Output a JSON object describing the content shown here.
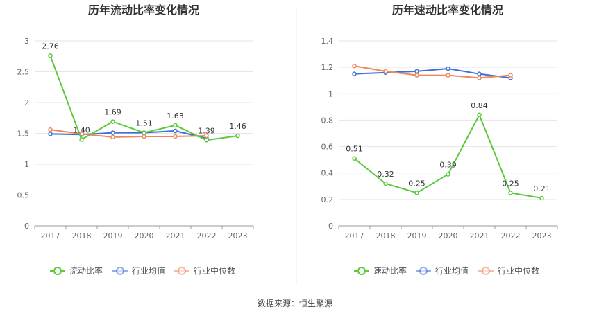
{
  "source": "数据来源：恒生聚源",
  "chart_data": [
    {
      "type": "line",
      "title": "历年流动比率变化情况",
      "categories": [
        "2017",
        "2018",
        "2019",
        "2020",
        "2021",
        "2022",
        "2023"
      ],
      "ylim": [
        0,
        3
      ],
      "yticks": [
        0,
        0.5,
        1,
        1.5,
        2,
        2.5,
        3
      ],
      "ytick_labels": [
        "0",
        "0.5",
        "1",
        "1.5",
        "2",
        "2.5",
        "3"
      ],
      "grid": true,
      "legend_position": "bottom",
      "series": [
        {
          "name": "流动比率",
          "color": "#5cc93b",
          "values": [
            2.76,
            1.4,
            1.69,
            1.51,
            1.63,
            1.39,
            1.46
          ],
          "labels": [
            "2.76",
            "1.40",
            "1.69",
            "1.51",
            "1.63",
            "1.39",
            "1.46"
          ]
        },
        {
          "name": "行业均值",
          "color": "#3e6fd8",
          "values": [
            1.49,
            1.48,
            1.51,
            1.51,
            1.54,
            1.42,
            null
          ]
        },
        {
          "name": "行业中位数",
          "color": "#f08659",
          "values": [
            1.56,
            1.49,
            1.44,
            1.45,
            1.45,
            1.46,
            null
          ]
        }
      ]
    },
    {
      "type": "line",
      "title": "历年速动比率变化情况",
      "categories": [
        "2017",
        "2018",
        "2019",
        "2020",
        "2021",
        "2022",
        "2023"
      ],
      "ylim": [
        0,
        1.4
      ],
      "yticks": [
        0,
        0.2,
        0.4,
        0.6,
        0.8,
        1,
        1.2,
        1.4
      ],
      "ytick_labels": [
        "0",
        "0.2",
        "0.4",
        "0.6",
        "0.8",
        "1",
        "1.2",
        "1.4"
      ],
      "grid": true,
      "legend_position": "bottom",
      "series": [
        {
          "name": "速动比率",
          "color": "#5cc93b",
          "values": [
            0.51,
            0.32,
            0.25,
            0.39,
            0.84,
            0.25,
            0.21
          ],
          "labels": [
            "0.51",
            "0.32",
            "0.25",
            "0.39",
            "0.84",
            "0.25",
            "0.21"
          ]
        },
        {
          "name": "行业均值",
          "color": "#3e6fd8",
          "values": [
            1.15,
            1.16,
            1.17,
            1.19,
            1.15,
            1.12,
            null
          ]
        },
        {
          "name": "行业中位数",
          "color": "#f08659",
          "values": [
            1.21,
            1.17,
            1.14,
            1.14,
            1.12,
            1.14,
            null
          ]
        }
      ]
    }
  ]
}
